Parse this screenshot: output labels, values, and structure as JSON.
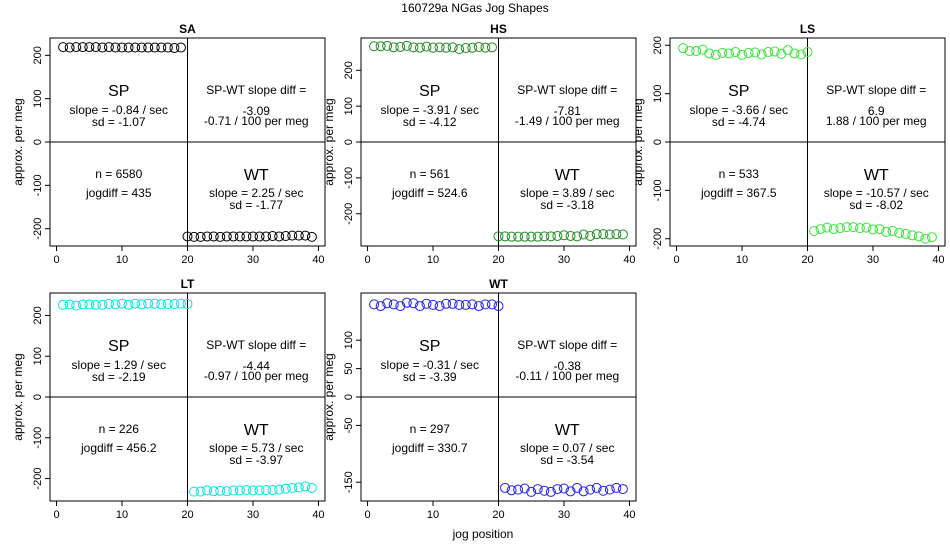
{
  "page": {
    "title": "160729a    NGas Jog Shapes",
    "xlabel": "jog position",
    "ylabel": "approx. per meg"
  },
  "chart_data": [
    {
      "type": "scatter",
      "title": "SA",
      "color": "#000000",
      "xlim": [
        -1,
        41
      ],
      "ylim": [
        -240,
        240
      ],
      "xticks": [
        0,
        10,
        20,
        30,
        40
      ],
      "yticks": [
        -200,
        -100,
        0,
        100,
        200
      ],
      "x": [
        1,
        2,
        3,
        4,
        5,
        6,
        7,
        8,
        9,
        10,
        11,
        12,
        13,
        14,
        15,
        16,
        17,
        18,
        19,
        20,
        21,
        22,
        23,
        24,
        25,
        26,
        27,
        28,
        29,
        30,
        31,
        32,
        33,
        34,
        35,
        36,
        37,
        38,
        39
      ],
      "y": [
        219,
        218,
        219,
        219,
        219,
        219,
        218,
        219,
        218,
        218,
        218,
        218,
        218,
        218,
        218,
        218,
        218,
        217,
        218,
        -218,
        -219,
        -219,
        -218,
        -218,
        -219,
        -218,
        -218,
        -218,
        -218,
        -218,
        -218,
        -218,
        -217,
        -218,
        -217,
        -216,
        -216,
        -216,
        -219
      ],
      "annotations": {
        "sp": "SP",
        "sp_slope": "slope = -0.84 / sec",
        "sp_sd": "sd = -1.07",
        "diff_label": "SP-WT slope diff =",
        "diff_val": "-3.09",
        "diff_meg": "-0.71 / 100 per meg",
        "n": "n = 6580",
        "jogdiff": "jogdiff = 435",
        "wt": "WT",
        "wt_slope": "slope = 2.25 / sec",
        "wt_sd": "sd = -1.77"
      }
    },
    {
      "type": "scatter",
      "title": "HS",
      "color": "#228b22",
      "xlim": [
        -1,
        41
      ],
      "ylim": [
        -290,
        290
      ],
      "xticks": [
        0,
        10,
        20,
        30,
        40
      ],
      "yticks": [
        -200,
        -100,
        0,
        100,
        200
      ],
      "x": [
        1,
        2,
        3,
        4,
        5,
        6,
        7,
        8,
        9,
        10,
        11,
        12,
        13,
        14,
        15,
        16,
        17,
        18,
        19,
        20,
        21,
        22,
        23,
        24,
        25,
        26,
        27,
        28,
        29,
        30,
        31,
        32,
        33,
        34,
        35,
        36,
        37,
        38,
        39
      ],
      "y": [
        267,
        267,
        268,
        264,
        265,
        268,
        264,
        263,
        266,
        263,
        264,
        263,
        264,
        259,
        262,
        263,
        265,
        263,
        264,
        -263,
        -263,
        -264,
        -264,
        -264,
        -264,
        -264,
        -263,
        -263,
        -262,
        -260,
        -262,
        -263,
        -258,
        -262,
        -257,
        -257,
        -258,
        -257,
        -258
      ],
      "annotations": {
        "sp": "SP",
        "sp_slope": "slope = -3.91 / sec",
        "sp_sd": "sd = -4.12",
        "diff_label": "SP-WT slope diff =",
        "diff_val": "-7.81",
        "diff_meg": "-1.49 / 100 per meg",
        "n": "n = 561",
        "jogdiff": "jogdiff = 524.6",
        "wt": "WT",
        "wt_slope": "slope = 3.89 / sec",
        "wt_sd": "sd = -3.18"
      }
    },
    {
      "type": "scatter",
      "title": "LS",
      "color": "#33e633",
      "xlim": [
        -1,
        41
      ],
      "ylim": [
        -215,
        215
      ],
      "xticks": [
        0,
        10,
        20,
        30,
        40
      ],
      "yticks": [
        -200,
        -100,
        0,
        100,
        200
      ],
      "x": [
        1,
        2,
        3,
        4,
        5,
        6,
        7,
        8,
        9,
        10,
        11,
        12,
        13,
        14,
        15,
        16,
        17,
        18,
        19,
        20,
        21,
        22,
        23,
        24,
        25,
        26,
        27,
        28,
        29,
        30,
        31,
        32,
        33,
        34,
        35,
        36,
        37,
        38,
        39
      ],
      "y": [
        194,
        188,
        188,
        191,
        183,
        180,
        184,
        183,
        186,
        180,
        184,
        185,
        181,
        186,
        187,
        182,
        190,
        183,
        181,
        186,
        -184,
        -180,
        -177,
        -180,
        -178,
        -176,
        -176,
        -178,
        -177,
        -181,
        -180,
        -186,
        -184,
        -188,
        -190,
        -193,
        -195,
        -200,
        -197
      ],
      "annotations": {
        "sp": "SP",
        "sp_slope": "slope = -3.66 / sec",
        "sp_sd": "sd = -4.74",
        "diff_label": "SP-WT slope diff =",
        "diff_val": "6.9",
        "diff_meg": "1.88 / 100 per meg",
        "n": "n = 533",
        "jogdiff": "jogdiff = 367.5",
        "wt": "WT",
        "wt_slope": "slope = -10.57 / sec",
        "wt_sd": "sd = -8.02"
      }
    },
    {
      "type": "scatter",
      "title": "LT",
      "color": "#00e5e5",
      "xlim": [
        -1,
        41
      ],
      "ylim": [
        -255,
        255
      ],
      "xticks": [
        0,
        10,
        20,
        30,
        40
      ],
      "yticks": [
        -200,
        -100,
        0,
        100,
        200
      ],
      "x": [
        1,
        2,
        3,
        4,
        5,
        6,
        7,
        8,
        9,
        10,
        11,
        12,
        13,
        14,
        15,
        16,
        17,
        18,
        19,
        20,
        21,
        22,
        23,
        24,
        25,
        26,
        27,
        28,
        29,
        30,
        31,
        32,
        33,
        34,
        35,
        36,
        37,
        38,
        39
      ],
      "y": [
        226,
        227,
        224,
        227,
        227,
        226,
        226,
        228,
        227,
        229,
        226,
        229,
        227,
        229,
        229,
        227,
        228,
        228,
        229,
        228,
        -232,
        -232,
        -229,
        -231,
        -230,
        -231,
        -229,
        -229,
        -228,
        -229,
        -229,
        -228,
        -228,
        -227,
        -225,
        -223,
        -222,
        -219,
        -223
      ],
      "annotations": {
        "sp": "SP",
        "sp_slope": "slope = 1.29 / sec",
        "sp_sd": "sd = -2.19",
        "diff_label": "SP-WT slope diff =",
        "diff_val": "-4.44",
        "diff_meg": "-0.97 / 100 per meg",
        "n": "n = 226",
        "jogdiff": "jogdiff = 456.2",
        "wt": "WT",
        "wt_slope": "slope = 5.73 / sec",
        "wt_sd": "sd = -3.97"
      }
    },
    {
      "type": "scatter",
      "title": "WT",
      "color": "#2020e6",
      "xlim": [
        -1,
        41
      ],
      "ylim": [
        -183,
        183
      ],
      "xticks": [
        0,
        10,
        20,
        30,
        40
      ],
      "yticks": [
        -150,
        -50,
        0,
        50,
        100
      ],
      "x": [
        1,
        2,
        3,
        4,
        5,
        6,
        7,
        8,
        9,
        10,
        11,
        12,
        13,
        14,
        15,
        16,
        17,
        18,
        19,
        20,
        21,
        22,
        23,
        24,
        25,
        26,
        27,
        28,
        29,
        30,
        31,
        32,
        33,
        34,
        35,
        36,
        37,
        38,
        39
      ],
      "y": [
        163,
        160,
        165,
        163,
        160,
        166,
        165,
        160,
        164,
        162,
        160,
        164,
        164,
        162,
        162,
        163,
        160,
        163,
        163,
        160,
        -160,
        -164,
        -163,
        -161,
        -167,
        -162,
        -165,
        -167,
        -162,
        -161,
        -166,
        -160,
        -166,
        -163,
        -160,
        -165,
        -163,
        -160,
        -162
      ],
      "annotations": {
        "sp": "SP",
        "sp_slope": "slope = -0.31 / sec",
        "sp_sd": "sd = -3.39",
        "diff_label": "SP-WT slope diff =",
        "diff_val": "-0.38",
        "diff_meg": "-0.11 / 100 per meg",
        "n": "n = 297",
        "jogdiff": "jogdiff = 330.7",
        "wt": "WT",
        "wt_slope": "slope = 0.07 / sec",
        "wt_sd": "sd = -3.54"
      }
    }
  ]
}
